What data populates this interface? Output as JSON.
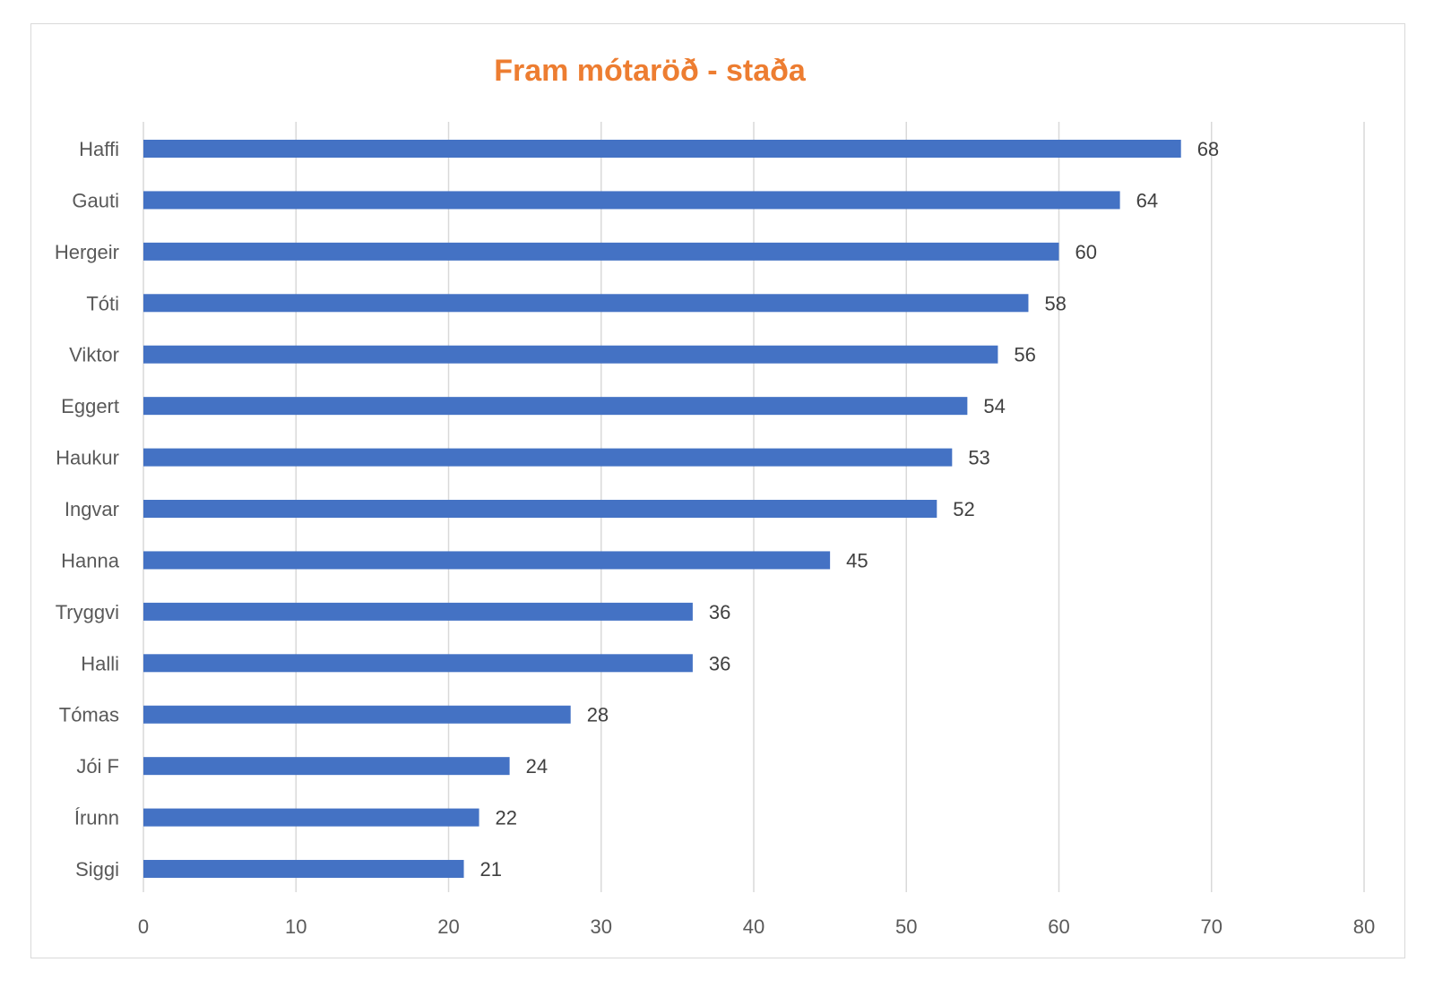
{
  "chart_data": {
    "type": "bar",
    "orientation": "horizontal",
    "title": "Fram mótaröð - staða",
    "xlabel": "",
    "ylabel": "",
    "categories": [
      "Haffi",
      "Gauti",
      "Hergeir",
      "Tóti",
      "Viktor",
      "Eggert",
      "Haukur",
      "Ingvar",
      "Hanna",
      "Tryggvi",
      "Halli",
      "Tómas",
      "Jói F",
      "Írunn",
      "Siggi"
    ],
    "values": [
      68,
      64,
      60,
      58,
      56,
      54,
      53,
      52,
      45,
      36,
      36,
      28,
      24,
      22,
      21
    ],
    "xlim": [
      0,
      80
    ],
    "xticks": [
      0,
      10,
      20,
      30,
      40,
      50,
      60,
      70,
      80
    ],
    "grid": true,
    "data_labels": true,
    "legend": "none",
    "bar_color": "#4472c4",
    "title_color": "#ed7d31"
  }
}
